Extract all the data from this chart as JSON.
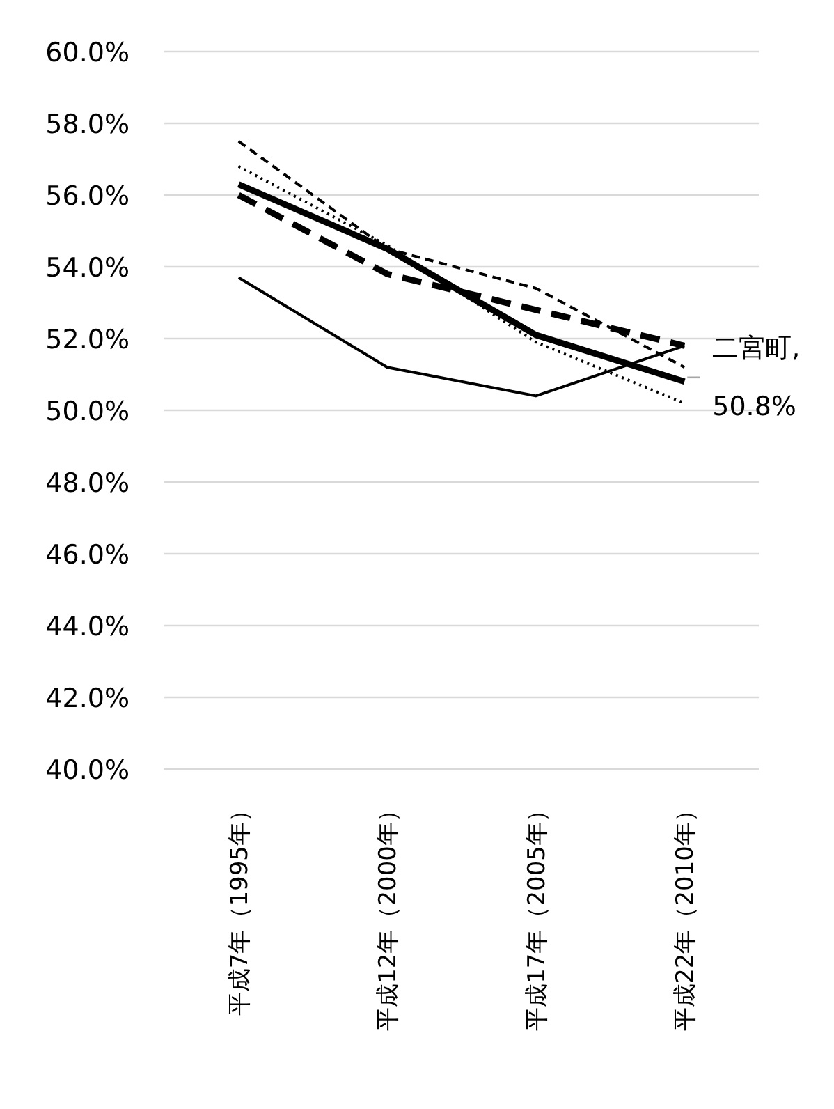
{
  "chart_data": {
    "type": "line",
    "categories": [
      "平成7年（1995年）",
      "平成12年（2000年）",
      "平成17年（2005年）",
      "平成22年（2010年）"
    ],
    "series": [
      {
        "color": "#000000",
        "line_style": "solid",
        "values": [
          56.3,
          54.5,
          52.1,
          50.8
        ],
        "value_labels": [
          null,
          null,
          null,
          "二宮町, 50.8%"
        ]
      },
      {
        "color": "#000000",
        "line_style": "dashed",
        "values": [
          56.0,
          53.8,
          52.8,
          51.8
        ]
      },
      {
        "color": "#000000",
        "line_style": "dashed",
        "values": [
          57.5,
          54.5,
          53.4,
          51.2
        ]
      },
      {
        "color": "#000000",
        "line_style": "dotted",
        "values": [
          56.8,
          54.6,
          51.9,
          50.2
        ]
      },
      {
        "color": "#000000",
        "line_style": "solid",
        "values": [
          53.7,
          51.2,
          50.4,
          51.8
        ]
      }
    ],
    "ylim": [
      40,
      60
    ],
    "yticks": [
      {
        "value": 40,
        "label": "40.0%"
      },
      {
        "value": 42,
        "label": "42.0%"
      },
      {
        "value": 44,
        "label": "44.0%"
      },
      {
        "value": 46,
        "label": "46.0%"
      },
      {
        "value": 48,
        "label": "48.0%"
      },
      {
        "value": 50,
        "label": "50.0%"
      },
      {
        "value": 52,
        "label": "52.0%"
      },
      {
        "value": 54,
        "label": "54.0%"
      },
      {
        "value": 56,
        "label": "56.0%"
      },
      {
        "value": 58,
        "label": "58.0%"
      },
      {
        "value": 60,
        "label": "60.0%"
      }
    ],
    "grid": "y",
    "marker": "none"
  }
}
